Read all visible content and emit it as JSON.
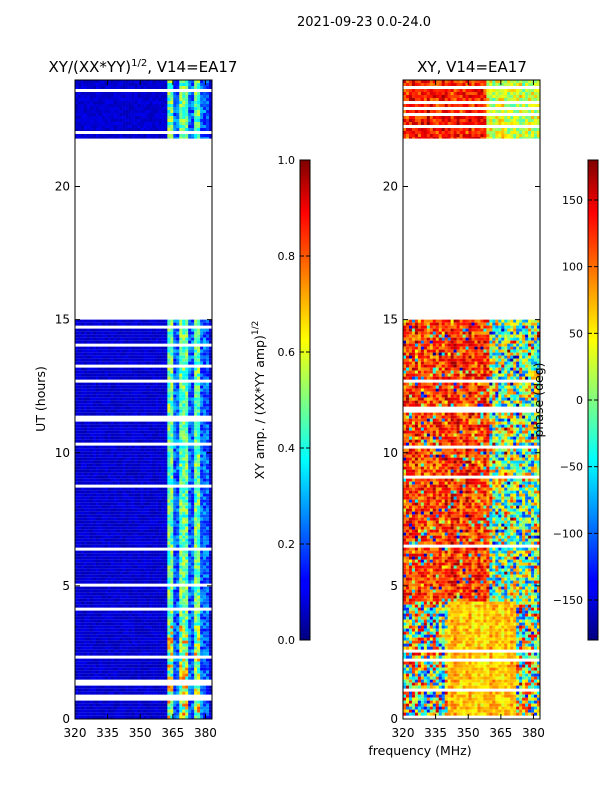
{
  "suptitle": "2021-09-23 0.0-24.0",
  "chart_data": [
    {
      "type": "heatmap",
      "title_main": "XY/(XX*YY)",
      "title_exp": "1/2",
      "title_rest": ", V14=EA17",
      "ylabel": "UT (hours)",
      "xlabel": "",
      "xlim": [
        320,
        383
      ],
      "ylim": [
        0,
        24
      ],
      "xticks": [
        320,
        335,
        350,
        365,
        380
      ],
      "yticks": [
        0,
        5,
        10,
        15,
        20
      ],
      "data_ranges_hours": [
        [
          0,
          15.0
        ],
        [
          21.8,
          24
        ]
      ],
      "colorbar": {
        "label_main": "XY amp. / (XX*YY amp)",
        "label_exp": "1/2",
        "range": [
          0.0,
          1.0
        ],
        "ticks": [
          "0.0",
          "0.2",
          "0.4",
          "0.6",
          "0.8",
          "1.0"
        ],
        "colormap": "jet"
      }
    },
    {
      "type": "heatmap",
      "title": "XY, V14=EA17",
      "xlabel": "frequency (MHz)",
      "xlim": [
        320,
        383
      ],
      "ylim": [
        0,
        24
      ],
      "xticks": [
        320,
        335,
        350,
        365,
        380
      ],
      "yticks": [
        0,
        5,
        10,
        15,
        20
      ],
      "data_ranges_hours": [
        [
          0,
          15.0
        ],
        [
          21.8,
          24
        ]
      ],
      "colorbar": {
        "label": "phase (deg)",
        "range": [
          -180,
          180
        ],
        "ticks": [
          "150",
          "100",
          "50",
          "0",
          "−50",
          "−100",
          "−150"
        ],
        "colormap": "jet"
      }
    }
  ]
}
